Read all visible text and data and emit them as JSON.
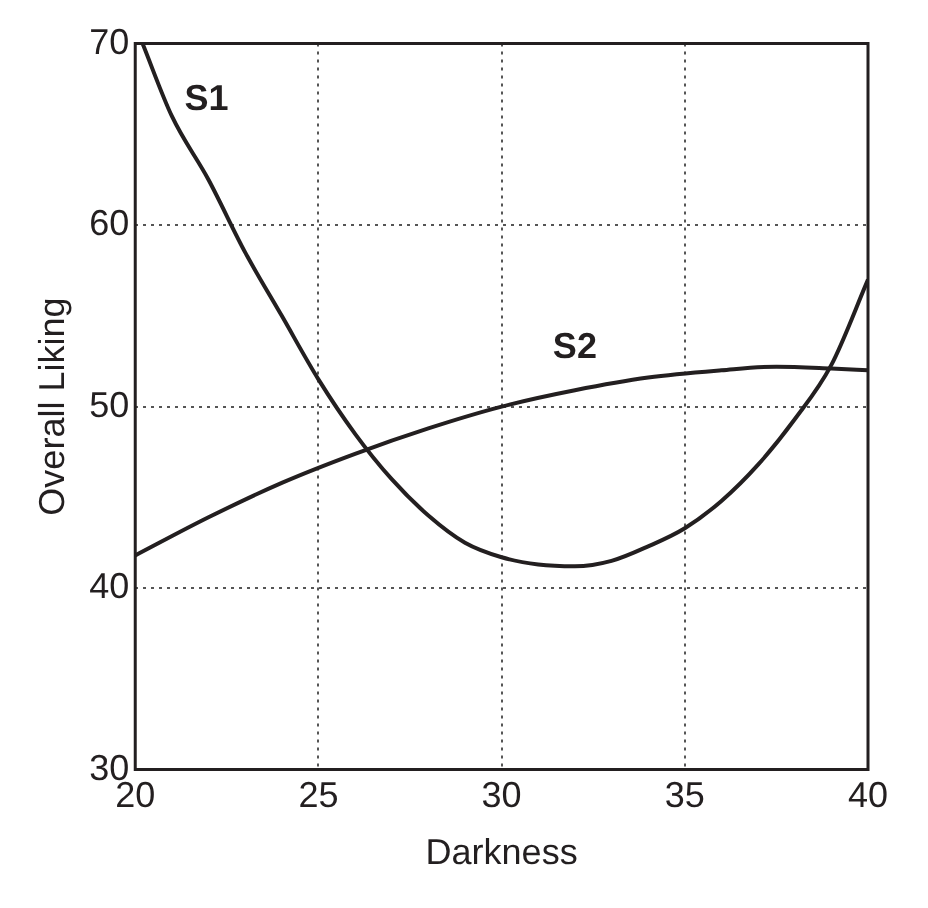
{
  "chart_data": {
    "type": "line",
    "xlabel": "Darkness",
    "ylabel": "Overall Liking",
    "xlim": [
      20,
      40
    ],
    "xticks": [
      20,
      25,
      30,
      35,
      40
    ],
    "ylim": [
      30,
      70
    ],
    "yticks": [
      30,
      40,
      50,
      60,
      70
    ],
    "grid": true,
    "legend": false,
    "marker": "none",
    "line_style": "solid",
    "series": [
      {
        "name": "S1",
        "color": "#231f20",
        "x": [
          20.2,
          21,
          22,
          23,
          24,
          25,
          26,
          27,
          28,
          29,
          30,
          31,
          32,
          33,
          34,
          35,
          36,
          37,
          38,
          39,
          40
        ],
        "values": [
          70,
          66,
          62.5,
          58.5,
          55,
          51.5,
          48.5,
          46,
          44,
          42.5,
          41.7,
          41.3,
          41.2,
          41.5,
          42.3,
          43.3,
          44.8,
          46.8,
          49.3,
          52.3,
          57
        ]
      },
      {
        "name": "S2",
        "color": "#231f20",
        "x": [
          20,
          22,
          24,
          26,
          28,
          30,
          32,
          34,
          36,
          37.5,
          39,
          40
        ],
        "values": [
          41.8,
          43.9,
          45.8,
          47.4,
          48.8,
          50,
          50.9,
          51.6,
          52,
          52.2,
          52.1,
          52
        ]
      }
    ]
  }
}
